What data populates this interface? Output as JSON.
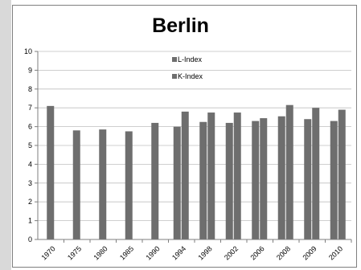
{
  "chart_data": {
    "type": "bar",
    "title": "Berlin",
    "xlabel": "",
    "ylabel": "",
    "categories": [
      "1970",
      "1975",
      "1980",
      "1985",
      "1990",
      "1994",
      "1998",
      "2002",
      "2006",
      "2008",
      "2009",
      "2010"
    ],
    "series": [
      {
        "name": "L-Index",
        "color": "#6e6e6e",
        "values": [
          7.1,
          5.8,
          5.85,
          5.75,
          6.2,
          6.0,
          6.25,
          6.2,
          6.3,
          6.55,
          6.4,
          6.3
        ]
      },
      {
        "name": "K-Index",
        "color": "#6e6e6e",
        "values": [
          null,
          null,
          null,
          null,
          null,
          6.8,
          6.75,
          6.75,
          6.45,
          7.15,
          7.0,
          6.9
        ]
      }
    ],
    "ylim": [
      0,
      10
    ],
    "yticks": [
      "0",
      "1",
      "2",
      "3",
      "4",
      "5",
      "6",
      "7",
      "8",
      "9",
      "10"
    ],
    "grid": "horizontal",
    "legend_position": "top-center"
  }
}
